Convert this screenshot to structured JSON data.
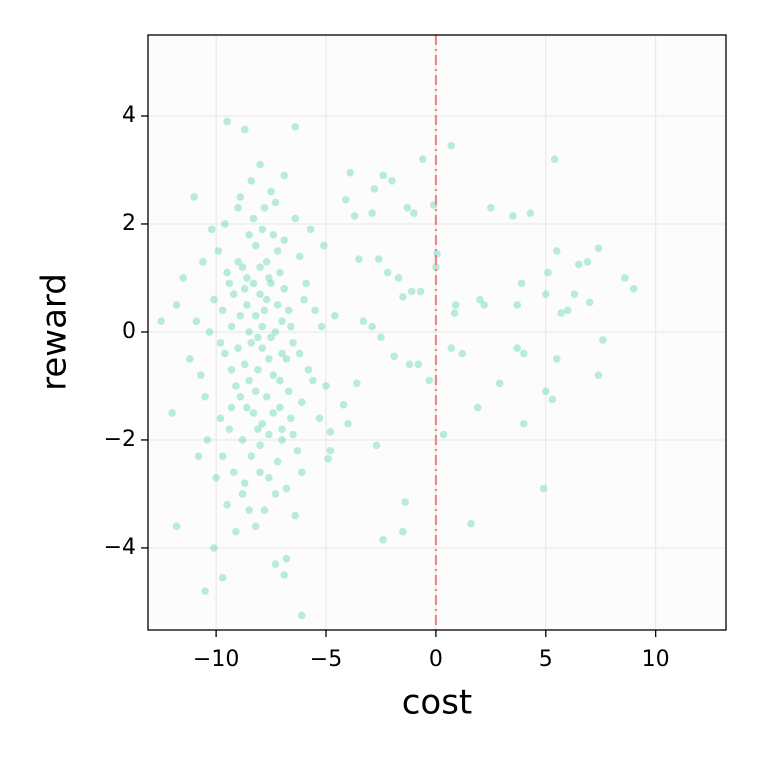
{
  "chart_data": {
    "type": "scatter",
    "x_label": "cost",
    "y_label": "reward",
    "color": "#52d1ae",
    "xlim": [
      -13.1,
      13.2
    ],
    "ylim": [
      -5.52,
      5.5
    ],
    "xticks": [
      {
        "value": -10,
        "label": "−10"
      },
      {
        "value": -5,
        "label": "−5"
      },
      0,
      5,
      10
    ],
    "yticks": [
      {
        "value": -4,
        "label": "−4"
      },
      {
        "value": -2,
        "label": "−2"
      },
      0,
      2,
      4
    ],
    "grid": true,
    "vline": {
      "x": 0,
      "color": "#e8898a"
    },
    "x": [
      -12.5,
      -11.8,
      -10.5,
      -10.1,
      -9.7,
      -9.5,
      -8.7,
      -6.4,
      -6.1,
      -6.8,
      -3.9,
      -0.6,
      0.7,
      5.4,
      2.5,
      4.3,
      3.5,
      7.4,
      8.6,
      9.0,
      7.6,
      7.4,
      4.9,
      1.6,
      -2.4,
      -1.4,
      -1.5,
      0.35,
      1.9,
      4.0,
      2.9,
      5.0,
      5.3,
      5.5,
      3.7,
      4.0,
      1.2,
      0.7,
      2.2,
      2.0,
      3.7,
      5.0,
      3.9,
      5.1,
      5.5,
      6.5,
      6.9,
      6.3,
      7.0,
      5.7,
      6.0,
      0.85,
      0.9,
      0,
      0.05,
      -0.1,
      -1.0,
      -1.3,
      -2.0,
      -2.4,
      -2.8,
      -3.7,
      -2.9,
      -4.1,
      -0.3,
      -0.8,
      -1.2,
      -1.9,
      -1.5,
      -1.1,
      -0.7,
      -1.7,
      -2.2,
      -2.6,
      -3.5,
      -3.3,
      -2.9,
      -2.5,
      -3.6,
      -4.2,
      -4.0,
      -4.8,
      -4.9,
      -2.7,
      -8.2,
      -7.6,
      -8.8,
      -7.1,
      -9.3,
      -8.0,
      -6.9,
      -7.9,
      -8.5,
      -9.8,
      -7.3,
      -8.7,
      -6.5,
      -10.1,
      -7.8,
      -9.0,
      -8.3,
      -7.5,
      -6.2,
      -9.6,
      -8.1,
      -7.2,
      -10.4,
      -8.6,
      -7.7,
      -6.7,
      -9.2,
      -8.4,
      -7.0,
      -5.8,
      -9.9,
      -8.9,
      -7.4,
      -6.4,
      -10.7,
      -8.0,
      -7.6,
      -9.4,
      -6.8,
      -8.2,
      -7.9,
      -5.5,
      -9.7,
      -8.5,
      -7.1,
      -6.6,
      -10.2,
      -8.7,
      -7.3,
      -9.1,
      -8.3,
      -6.1,
      -7.8,
      -9.5,
      -8.6,
      -7.0,
      -5.9,
      -10.9,
      -8.1,
      -7.5,
      -9.3,
      -6.3,
      -8.8,
      -7.7,
      -9.0,
      -6.9,
      -8.4,
      -7.2,
      -10.5,
      -8.0,
      -5.6,
      -9.6,
      -7.4,
      -8.9,
      -6.6,
      -7.9,
      -9.8,
      -8.2,
      -7.0,
      -6.0,
      -8.6,
      -10.0,
      -7.3,
      -9.2,
      -8.5,
      -6.8,
      -7.6,
      -11.2,
      -8.3,
      -7.1,
      -5.3,
      -9.4,
      -8.0,
      -6.4,
      -7.8,
      -9.1,
      -8.7,
      -7.5,
      -6.2,
      -10.3,
      -8.1,
      -7.2,
      -9.7,
      -5.7,
      -8.8,
      -7.4,
      -6.7,
      -9.0,
      -8.4,
      -11.5,
      -7.7,
      -6.1,
      -8.9,
      -7.0,
      -9.5,
      -8.2,
      -5.2,
      -7.6,
      -10.8,
      -8.5,
      -6.9,
      -9.3,
      -7.9,
      -6.5,
      -8.0,
      -11.8,
      -10.6,
      -7.3,
      -6.9,
      -5.0,
      -4.6,
      -5.1,
      -4.8,
      -12.0,
      -11.0
    ],
    "values": [
      0.2,
      -3.6,
      -4.8,
      -4.0,
      -4.55,
      3.9,
      3.75,
      3.8,
      -5.25,
      -4.2,
      2.95,
      3.2,
      3.45,
      3.2,
      2.3,
      2.2,
      2.15,
      1.55,
      1.0,
      0.8,
      -0.15,
      -0.8,
      -2.9,
      -3.55,
      -3.85,
      -3.15,
      -3.7,
      -1.9,
      -1.4,
      -1.7,
      -0.95,
      -1.1,
      -1.25,
      -0.5,
      -0.3,
      -0.4,
      -0.4,
      -0.3,
      0.5,
      0.6,
      0.5,
      0.7,
      0.9,
      1.1,
      1.5,
      1.25,
      1.3,
      0.7,
      0.55,
      0.35,
      0.4,
      0.35,
      0.5,
      1.2,
      1.45,
      2.35,
      2.2,
      2.3,
      2.8,
      2.9,
      2.65,
      2.15,
      2.2,
      2.45,
      -0.9,
      -0.6,
      -0.6,
      -0.45,
      0.65,
      0.75,
      0.75,
      1.0,
      1.1,
      1.35,
      1.35,
      0.2,
      0.1,
      -0.1,
      -0.95,
      -1.35,
      -1.7,
      -1.85,
      -2.35,
      -2.1,
      0.3,
      -0.5,
      1.2,
      -1.4,
      0.1,
      -2.1,
      0.8,
      1.9,
      -0.9,
      -1.6,
      2.4,
      -2.8,
      -0.2,
      0.6,
      -3.3,
      2.3,
      -1.5,
      0.9,
      1.4,
      -0.4,
      -0.1,
      -2.4,
      -2.0,
      0.5,
      1.3,
      -1.1,
      -2.6,
      2.8,
      0.2,
      -0.7,
      1.5,
      -1.2,
      -0.8,
      2.1,
      -0.8,
      0.7,
      -1.9,
      0.9,
      -2.9,
      1.6,
      -0.3,
      0.4,
      -2.3,
      0.0,
      1.1,
      -1.6,
      1.9,
      -0.6,
      -3.0,
      -1.0,
      2.1,
      -1.3,
      0.4,
      -3.2,
      1.0,
      -0.4,
      0.9,
      0.2,
      -1.8,
      2.6,
      -0.7,
      -2.2,
      -2.0,
      -1.2,
      1.3,
      1.7,
      -0.2,
      0.5,
      -1.2,
      -2.6,
      -0.9,
      2.0,
      1.8,
      0.3,
      0.1,
      -1.7,
      -0.2,
      -3.6,
      -2.0,
      0.6,
      -1.4,
      -2.7,
      0.0,
      0.7,
      1.8,
      -0.5,
      -2.7,
      -0.5,
      0.9,
      -0.9,
      -1.6,
      -1.8,
      1.2,
      -3.4,
      2.3,
      -3.7,
      0.8,
      -0.1,
      -0.4,
      0.0,
      -0.7,
      1.5,
      0.4,
      1.9,
      -3.0,
      -1.5,
      0.4,
      -0.3,
      -2.3,
      1.0,
      0.6,
      -2.6,
      2.5,
      -1.8,
      1.1,
      -1.1,
      0.1,
      1.0,
      -2.3,
      -3.3,
      2.9,
      -1.4,
      0.1,
      -1.9,
      3.1,
      0.5,
      1.3,
      -4.3,
      -4.5,
      -1.0,
      0.3,
      1.6,
      -2.2,
      -1.5,
      2.5
    ]
  }
}
